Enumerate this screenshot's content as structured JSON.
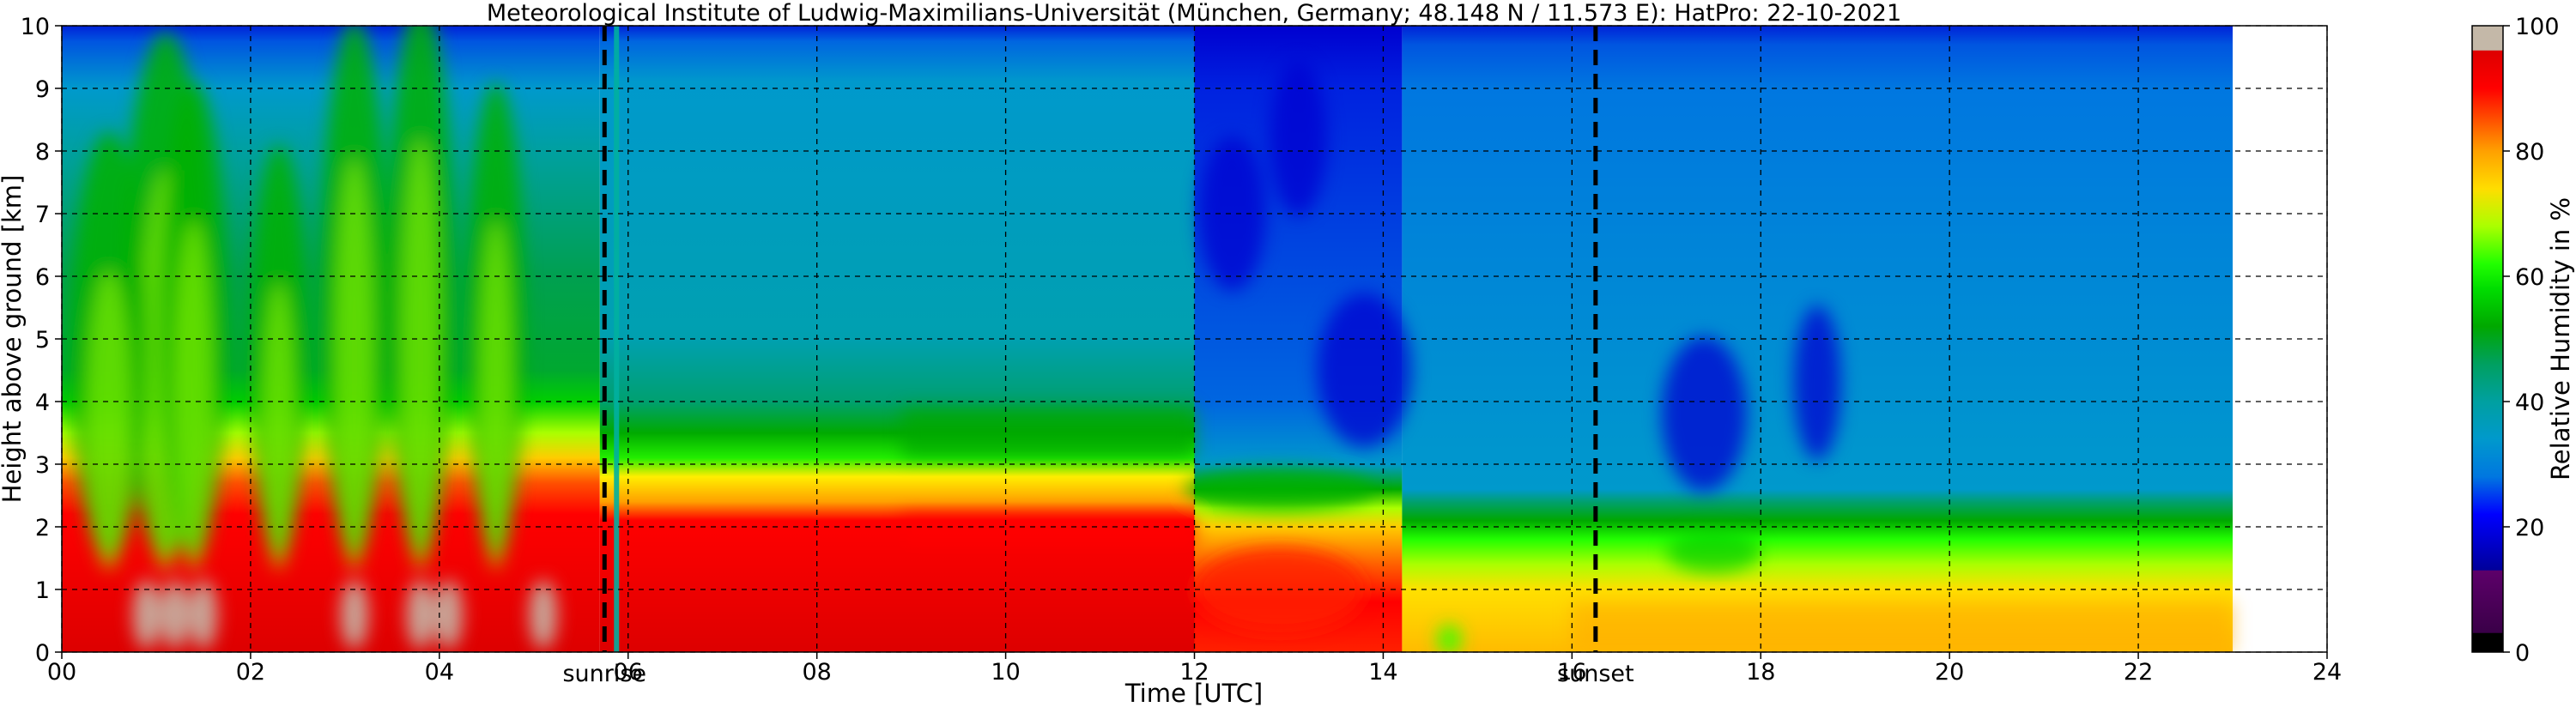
{
  "chart_data": {
    "type": "heatmap",
    "title": "Meteorological Institute of Ludwig-Maximilians-Universität (München, Germany; 48.148 N / 11.573 E):    HatPro: 22-10-2021",
    "xlabel": "Time [UTC]",
    "ylabel": "Height above ground [km]",
    "xlim": [
      0,
      24
    ],
    "ylim": [
      0,
      10
    ],
    "x_tick_labels": [
      "00",
      "02",
      "04",
      "06",
      "08",
      "10",
      "12",
      "14",
      "16",
      "18",
      "20",
      "22",
      "24"
    ],
    "y_tick_labels": [
      "0",
      "1",
      "2",
      "3",
      "4",
      "5",
      "6",
      "7",
      "8",
      "9",
      "10"
    ],
    "data_end_time": 23.0,
    "grid": true,
    "annotations": [
      {
        "label": "sunrise",
        "x": 5.75
      },
      {
        "label": "sunset",
        "x": 16.25
      }
    ],
    "colorbar": {
      "label": "Relative Humidity in %",
      "range": [
        0,
        100
      ],
      "tick_labels": [
        "0",
        "20",
        "40",
        "60",
        "80",
        "100"
      ],
      "colors": [
        "#000000",
        "#4b0055",
        "#5d006a",
        "#0000b8",
        "#0000ff",
        "#0066e0",
        "#0099cc",
        "#00a0a0",
        "#00a050",
        "#00b000",
        "#00dd00",
        "#22ff00",
        "#aaff00",
        "#ffdd00",
        "#ffa000",
        "#ff5000",
        "#ff0000",
        "#dd0000",
        "#c4b8a8"
      ]
    },
    "humidity_profile_summary": [
      {
        "period": "00-05",
        "surface_to_2km": 99,
        "2_to_3km": 80,
        "3_to_5km": 55,
        "5_to_8km": 50,
        "8_to_10km": 30
      },
      {
        "period": "06-12",
        "surface_to_2km": 90,
        "2_to_3km": 70,
        "3_to_4km": 52,
        "4_to_9km": 36,
        "9_to_10km": 20
      },
      {
        "period": "12-14",
        "surface_to_1km": 88,
        "1_to_2km": 70,
        "2_to_3km": 55,
        "4_to_10km": 20
      },
      {
        "period": "14-23",
        "surface_to_2km": 70,
        "2_to_2.3km": 55,
        "2.3_to_10km": 28,
        "10km": 15
      }
    ]
  }
}
